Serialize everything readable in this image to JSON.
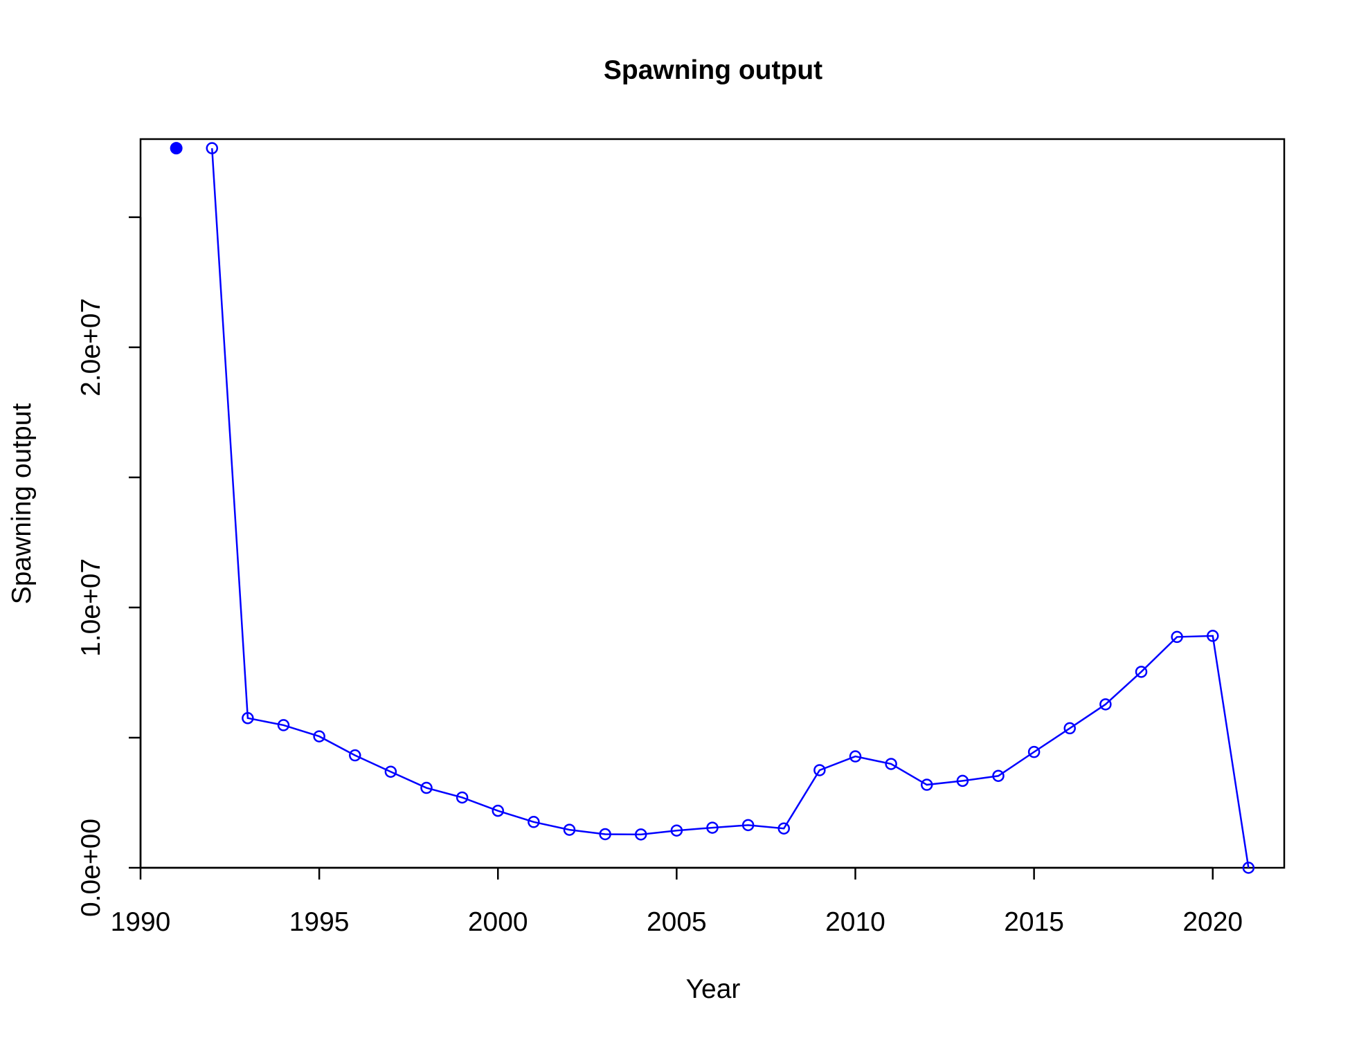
{
  "chart_data": {
    "type": "line",
    "title": "Spawning output",
    "xlabel": "Year",
    "ylabel": "Spawning output",
    "xlim": [
      1990,
      2022
    ],
    "ylim": [
      0,
      28000000
    ],
    "grid": false,
    "x_ticks": [
      1990,
      1995,
      2000,
      2005,
      2010,
      2015,
      2020
    ],
    "x_tick_labels": [
      "1990",
      "1995",
      "2000",
      "2005",
      "2010",
      "2015",
      "2020"
    ],
    "y_ticks": [
      0,
      5000000,
      10000000,
      15000000,
      20000000,
      25000000
    ],
    "y_tick_labels": [
      "0.0e+00",
      "",
      "1.0e+07",
      "",
      "2.0e+07",
      ""
    ],
    "color": "#0000ff",
    "virgin_point": {
      "x": 1991,
      "y": 27650000
    },
    "series": [
      {
        "x": [
          1992,
          1993,
          1994,
          1995,
          1996,
          1997,
          1998,
          1999,
          2000,
          2001,
          2002,
          2003,
          2004,
          2005,
          2006,
          2007,
          2008,
          2009,
          2010,
          2011,
          2012,
          2013,
          2014,
          2015,
          2016,
          2017,
          2018,
          2019,
          2020,
          2021
        ],
        "y": [
          27650000,
          5750000,
          5480000,
          5050000,
          4320000,
          3690000,
          3070000,
          2700000,
          2190000,
          1760000,
          1460000,
          1290000,
          1280000,
          1430000,
          1540000,
          1640000,
          1510000,
          3750000,
          4280000,
          3990000,
          3190000,
          3340000,
          3530000,
          4450000,
          5360000,
          6280000,
          7530000,
          8870000,
          8910000,
          0
        ]
      }
    ]
  }
}
